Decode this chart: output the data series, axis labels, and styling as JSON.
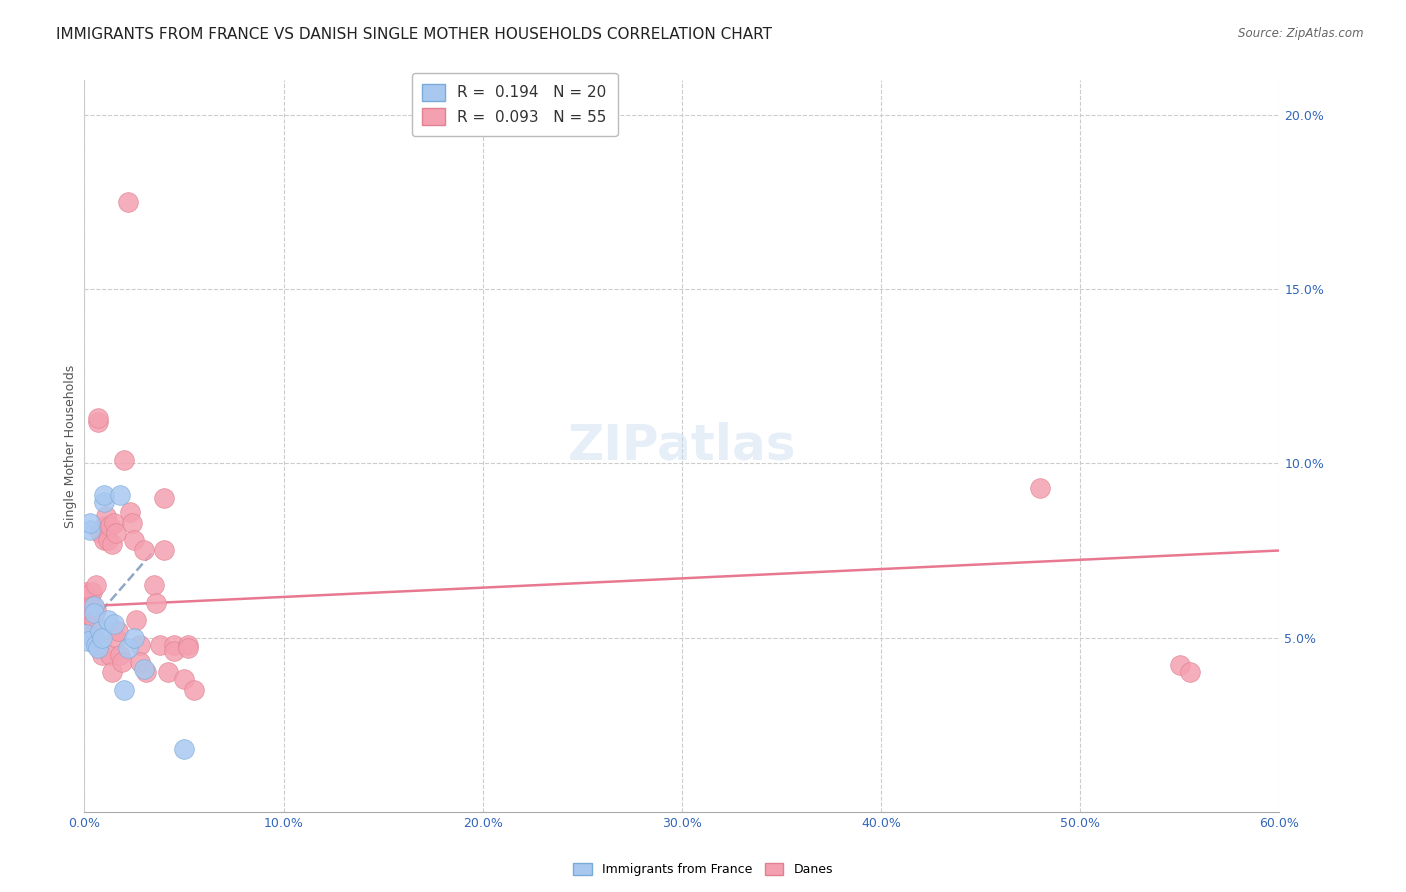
{
  "title": "IMMIGRANTS FROM FRANCE VS DANISH SINGLE MOTHER HOUSEHOLDS CORRELATION CHART",
  "source": "Source: ZipAtlas.com",
  "ylabel": "Single Mother Households",
  "xlim": [
    0.0,
    0.6
  ],
  "ylim": [
    0.0,
    0.21
  ],
  "xticks": [
    0.0,
    0.1,
    0.2,
    0.3,
    0.4,
    0.5,
    0.6
  ],
  "xticklabels": [
    "0.0%",
    "10.0%",
    "20.0%",
    "30.0%",
    "40.0%",
    "50.0%",
    "60.0%"
  ],
  "yticks_right": [
    0.05,
    0.1,
    0.15,
    0.2
  ],
  "ytick_labels_right": [
    "5.0%",
    "10.0%",
    "15.0%",
    "20.0%"
  ],
  "blue_R": "0.194",
  "blue_N": "20",
  "pink_R": "0.093",
  "pink_N": "55",
  "watermark": "ZIPatlas",
  "blue_color": "#a8c8f0",
  "pink_color": "#f4a0b0",
  "blue_line": [
    [
      0.0,
      0.052
    ],
    [
      0.035,
      0.075
    ]
  ],
  "pink_line": [
    [
      0.0,
      0.059
    ],
    [
      0.6,
      0.075
    ]
  ],
  "blue_scatter": [
    [
      0.001,
      0.051
    ],
    [
      0.002,
      0.049
    ],
    [
      0.003,
      0.081
    ],
    [
      0.003,
      0.083
    ],
    [
      0.005,
      0.059
    ],
    [
      0.005,
      0.057
    ],
    [
      0.006,
      0.048
    ],
    [
      0.007,
      0.047
    ],
    [
      0.008,
      0.052
    ],
    [
      0.009,
      0.05
    ],
    [
      0.01,
      0.089
    ],
    [
      0.01,
      0.091
    ],
    [
      0.012,
      0.055
    ],
    [
      0.015,
      0.054
    ],
    [
      0.018,
      0.091
    ],
    [
      0.02,
      0.035
    ],
    [
      0.022,
      0.047
    ],
    [
      0.025,
      0.05
    ],
    [
      0.03,
      0.041
    ],
    [
      0.05,
      0.018
    ]
  ],
  "pink_scatter": [
    [
      0.001,
      0.063
    ],
    [
      0.001,
      0.06
    ],
    [
      0.002,
      0.057
    ],
    [
      0.002,
      0.055
    ],
    [
      0.003,
      0.052
    ],
    [
      0.003,
      0.061
    ],
    [
      0.004,
      0.063
    ],
    [
      0.004,
      0.059
    ],
    [
      0.005,
      0.055
    ],
    [
      0.005,
      0.05
    ],
    [
      0.006,
      0.065
    ],
    [
      0.006,
      0.058
    ],
    [
      0.007,
      0.112
    ],
    [
      0.007,
      0.113
    ],
    [
      0.008,
      0.08
    ],
    [
      0.009,
      0.045
    ],
    [
      0.01,
      0.082
    ],
    [
      0.01,
      0.078
    ],
    [
      0.011,
      0.085
    ],
    [
      0.012,
      0.078
    ],
    [
      0.013,
      0.082
    ],
    [
      0.013,
      0.045
    ],
    [
      0.014,
      0.077
    ],
    [
      0.014,
      0.04
    ],
    [
      0.015,
      0.083
    ],
    [
      0.016,
      0.08
    ],
    [
      0.016,
      0.05
    ],
    [
      0.017,
      0.052
    ],
    [
      0.018,
      0.045
    ],
    [
      0.019,
      0.043
    ],
    [
      0.02,
      0.101
    ],
    [
      0.022,
      0.175
    ],
    [
      0.023,
      0.086
    ],
    [
      0.024,
      0.083
    ],
    [
      0.025,
      0.078
    ],
    [
      0.026,
      0.055
    ],
    [
      0.028,
      0.048
    ],
    [
      0.028,
      0.043
    ],
    [
      0.03,
      0.075
    ],
    [
      0.031,
      0.04
    ],
    [
      0.035,
      0.065
    ],
    [
      0.036,
      0.06
    ],
    [
      0.038,
      0.048
    ],
    [
      0.04,
      0.09
    ],
    [
      0.04,
      0.075
    ],
    [
      0.042,
      0.04
    ],
    [
      0.045,
      0.048
    ],
    [
      0.045,
      0.046
    ],
    [
      0.05,
      0.038
    ],
    [
      0.052,
      0.048
    ],
    [
      0.052,
      0.047
    ],
    [
      0.055,
      0.035
    ],
    [
      0.48,
      0.093
    ],
    [
      0.55,
      0.042
    ],
    [
      0.555,
      0.04
    ]
  ],
  "title_fontsize": 11,
  "axis_label_fontsize": 9,
  "tick_fontsize": 9,
  "legend_fontsize": 11,
  "watermark_fontsize": 36,
  "watermark_color": "#c8ddf0",
  "watermark_alpha": 0.45
}
